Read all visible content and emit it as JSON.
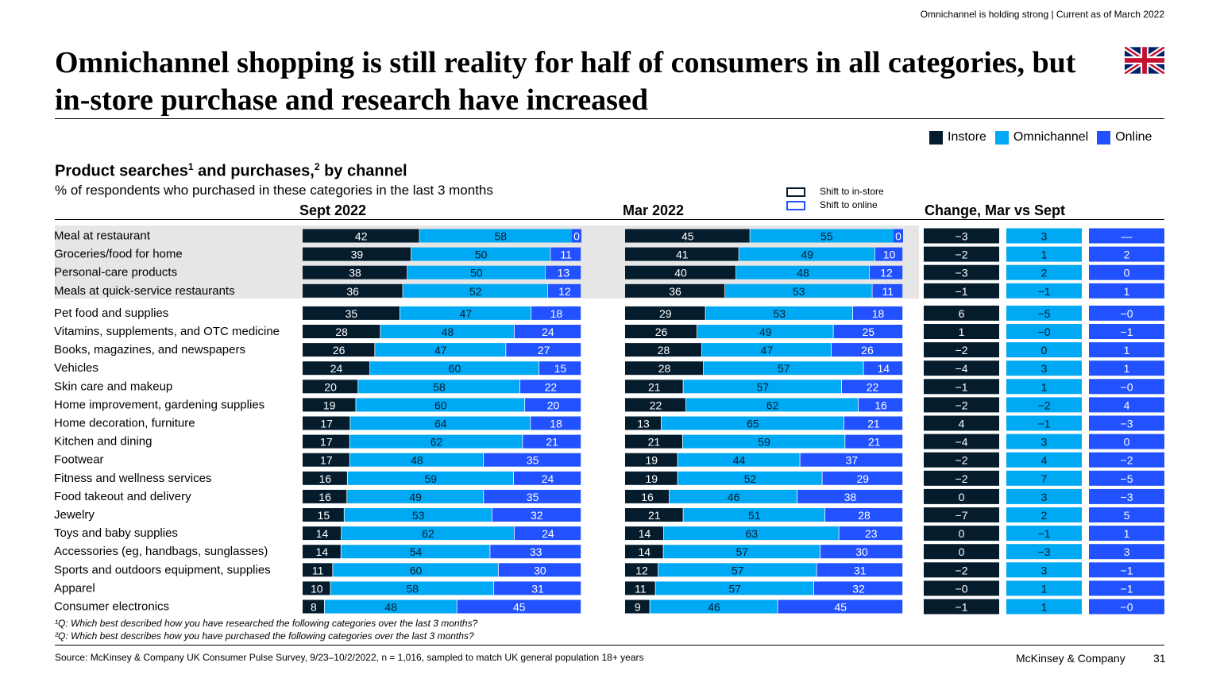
{
  "header": {
    "top_note": "Omnichannel is holding strong | Current as of March 2022",
    "title": "Omnichannel shopping is still reality for half of consumers in all categories, but in-store purchase and research have increased"
  },
  "legend": {
    "instore": "Instore",
    "omnichannel": "Omnichannel",
    "online": "Online"
  },
  "shift_legend": {
    "to_instore": "Shift to in-store",
    "to_online": "Shift to online"
  },
  "colors": {
    "instore": "#051c2c",
    "omnichannel": "#00a9f4",
    "online": "#2251ff",
    "highlight": "#e6e6e6"
  },
  "subtitle": {
    "part1": "Product searches",
    "sup1": "1",
    "part2": " and purchases,",
    "sup2": "2",
    "part3": " by channel"
  },
  "unit_note": "% of respondents who purchased in these categories in the last 3 months",
  "chart_data": {
    "type": "bar",
    "stacked": true,
    "orientation": "horizontal",
    "panels": [
      "Sept 2022",
      "Mar 2022"
    ],
    "change_header": "Change, Mar vs Sept",
    "highlighted_rows": 4,
    "categories": [
      "Meal at restaurant",
      "Groceries/food for home",
      "Personal-care products",
      "Meals at quick-service restaurants",
      "Pet food and supplies",
      "Vitamins, supplements, and OTC medicine",
      "Books, magazines, and newspapers",
      "Vehicles",
      "Skin care and makeup",
      "Home improvement, gardening supplies",
      "Home decoration, furniture",
      "Kitchen and dining",
      "Footwear",
      "Fitness and wellness services",
      "Food takeout and delivery",
      "Jewelry",
      "Toys and baby supplies",
      "Accessories (eg, handbags, sunglasses)",
      "Sports and outdoors equipment, supplies",
      "Apparel",
      "Consumer electronics"
    ],
    "sept_2022": {
      "instore": [
        42,
        39,
        38,
        36,
        35,
        28,
        26,
        24,
        20,
        19,
        17,
        17,
        17,
        16,
        16,
        15,
        14,
        14,
        11,
        10,
        8
      ],
      "omnichannel": [
        58,
        50,
        50,
        52,
        47,
        48,
        47,
        60,
        58,
        60,
        64,
        62,
        48,
        59,
        49,
        53,
        62,
        54,
        60,
        58,
        48
      ],
      "online": [
        0,
        11,
        13,
        12,
        18,
        24,
        27,
        15,
        22,
        20,
        18,
        21,
        35,
        24,
        35,
        32,
        24,
        33,
        30,
        31,
        45
      ]
    },
    "mar_2022": {
      "instore": [
        45,
        41,
        40,
        36,
        29,
        26,
        28,
        28,
        21,
        22,
        13,
        21,
        19,
        19,
        16,
        21,
        14,
        14,
        12,
        11,
        9
      ],
      "omnichannel": [
        55,
        49,
        48,
        53,
        53,
        49,
        47,
        57,
        57,
        62,
        65,
        59,
        44,
        52,
        46,
        51,
        63,
        57,
        57,
        57,
        46
      ],
      "online": [
        0,
        10,
        12,
        11,
        18,
        25,
        26,
        14,
        22,
        16,
        21,
        21,
        37,
        29,
        38,
        28,
        23,
        30,
        31,
        32,
        45
      ]
    },
    "change": {
      "instore": [
        "−3",
        "−2",
        "−3",
        "−1",
        "6",
        "1",
        "−2",
        "−4",
        "−1",
        "−2",
        "4",
        "−4",
        "−2",
        "−2",
        "0",
        "−7",
        "0",
        "0",
        "−2",
        "−0",
        "−1"
      ],
      "omnichannel": [
        "3",
        "1",
        "2",
        "−1",
        "−5",
        "−0",
        "0",
        "3",
        "1",
        "−2",
        "−1",
        "3",
        "4",
        "7",
        "3",
        "2",
        "−1",
        "−3",
        "3",
        "1",
        "1"
      ],
      "online": [
        "—",
        "2",
        "0",
        "1",
        "−0",
        "−1",
        "1",
        "1",
        "−0",
        "4",
        "−3",
        "0",
        "−2",
        "−5",
        "−3",
        "5",
        "1",
        "3",
        "−1",
        "−1",
        "−0"
      ]
    }
  },
  "footnotes": {
    "fn1": "¹Q: Which best described how you have researched the following categories over the last 3 months?",
    "fn2": "²Q: Which best describes how you have purchased the following categories over the last 3 months?"
  },
  "footer": {
    "source": "Source: McKinsey & Company UK Consumer Pulse Survey, 9/23–10/2/2022, n = 1,016, sampled to match UK general population 18+ years",
    "brand": "McKinsey & Company",
    "page": "31"
  }
}
